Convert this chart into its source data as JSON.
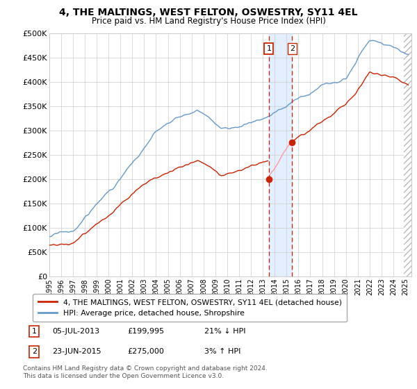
{
  "title": "4, THE MALTINGS, WEST FELTON, OSWESTRY, SY11 4EL",
  "subtitle": "Price paid vs. HM Land Registry's House Price Index (HPI)",
  "ylim": [
    0,
    500000
  ],
  "xlim_start": 1995.0,
  "xlim_end": 2025.5,
  "yticks": [
    0,
    50000,
    100000,
    150000,
    200000,
    250000,
    300000,
    350000,
    400000,
    450000,
    500000
  ],
  "ytick_labels": [
    "£0",
    "£50K",
    "£100K",
    "£150K",
    "£200K",
    "£250K",
    "£300K",
    "£350K",
    "£400K",
    "£450K",
    "£500K"
  ],
  "xtick_years": [
    1995,
    1996,
    1997,
    1998,
    1999,
    2000,
    2001,
    2002,
    2003,
    2004,
    2005,
    2006,
    2007,
    2008,
    2009,
    2010,
    2011,
    2012,
    2013,
    2014,
    2015,
    2016,
    2017,
    2018,
    2019,
    2020,
    2021,
    2022,
    2023,
    2024,
    2025
  ],
  "hpi_color": "#6699cc",
  "price_color": "#cc2200",
  "purchase1_date": 2013.51,
  "purchase1_price": 199995,
  "purchase1_label": "1",
  "purchase1_hpi_pct": "21% ↓ HPI",
  "purchase1_date_str": "05-JUL-2013",
  "purchase2_date": 2015.47,
  "purchase2_price": 275000,
  "purchase2_label": "2",
  "purchase2_hpi_pct": "3% ↑ HPI",
  "purchase2_date_str": "23-JUN-2015",
  "shade_color": "#cce0ff",
  "bg_color": "#ffffff",
  "grid_color": "#cccccc",
  "legend1_label": "4, THE MALTINGS, WEST FELTON, OSWESTRY, SY11 4EL (detached house)",
  "legend2_label": "HPI: Average price, detached house, Shropshire",
  "footnote1": "Contains HM Land Registry data © Crown copyright and database right 2024.",
  "footnote2": "This data is licensed under the Open Government Licence v3.0.",
  "hatch_color": "#bbbbbb",
  "label1_box_color": "#cc2200",
  "label2_box_color": "#cc2200"
}
